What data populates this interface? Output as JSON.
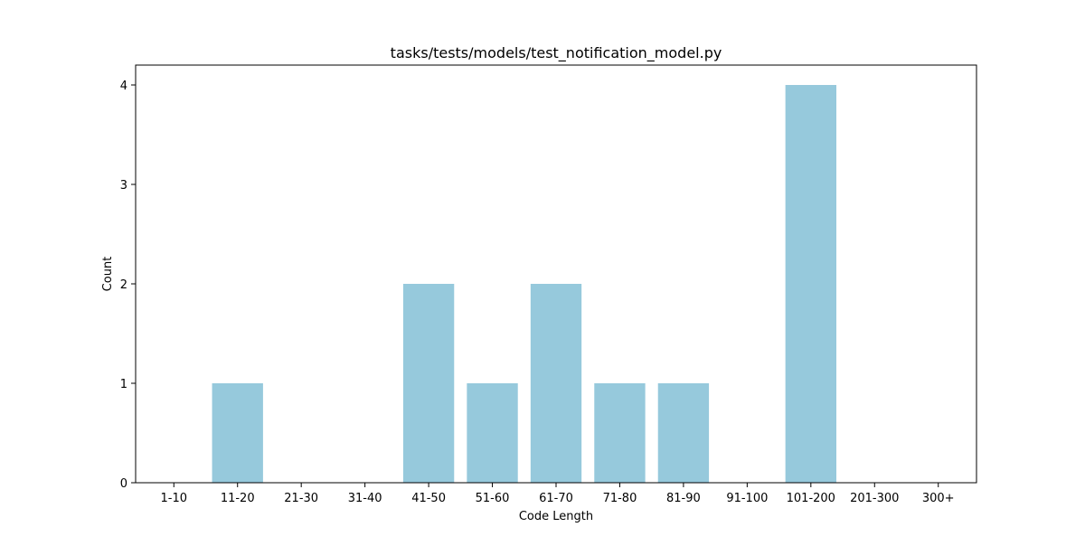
{
  "chart_data": {
    "type": "bar",
    "title": "tasks/tests/models/test_notification_model.py",
    "xlabel": "Code Length",
    "ylabel": "Count",
    "categories": [
      "1-10",
      "11-20",
      "21-30",
      "31-40",
      "41-50",
      "51-60",
      "61-70",
      "71-80",
      "81-90",
      "91-100",
      "101-200",
      "201-300",
      "300+"
    ],
    "values": [
      0,
      1,
      0,
      0,
      2,
      1,
      2,
      1,
      1,
      0,
      4,
      0,
      0
    ],
    "yticks": [
      0,
      1,
      2,
      3,
      4
    ],
    "ylim": [
      0,
      4.2
    ],
    "grid": false,
    "legend": "none",
    "bar_color": "#96c9dc"
  }
}
